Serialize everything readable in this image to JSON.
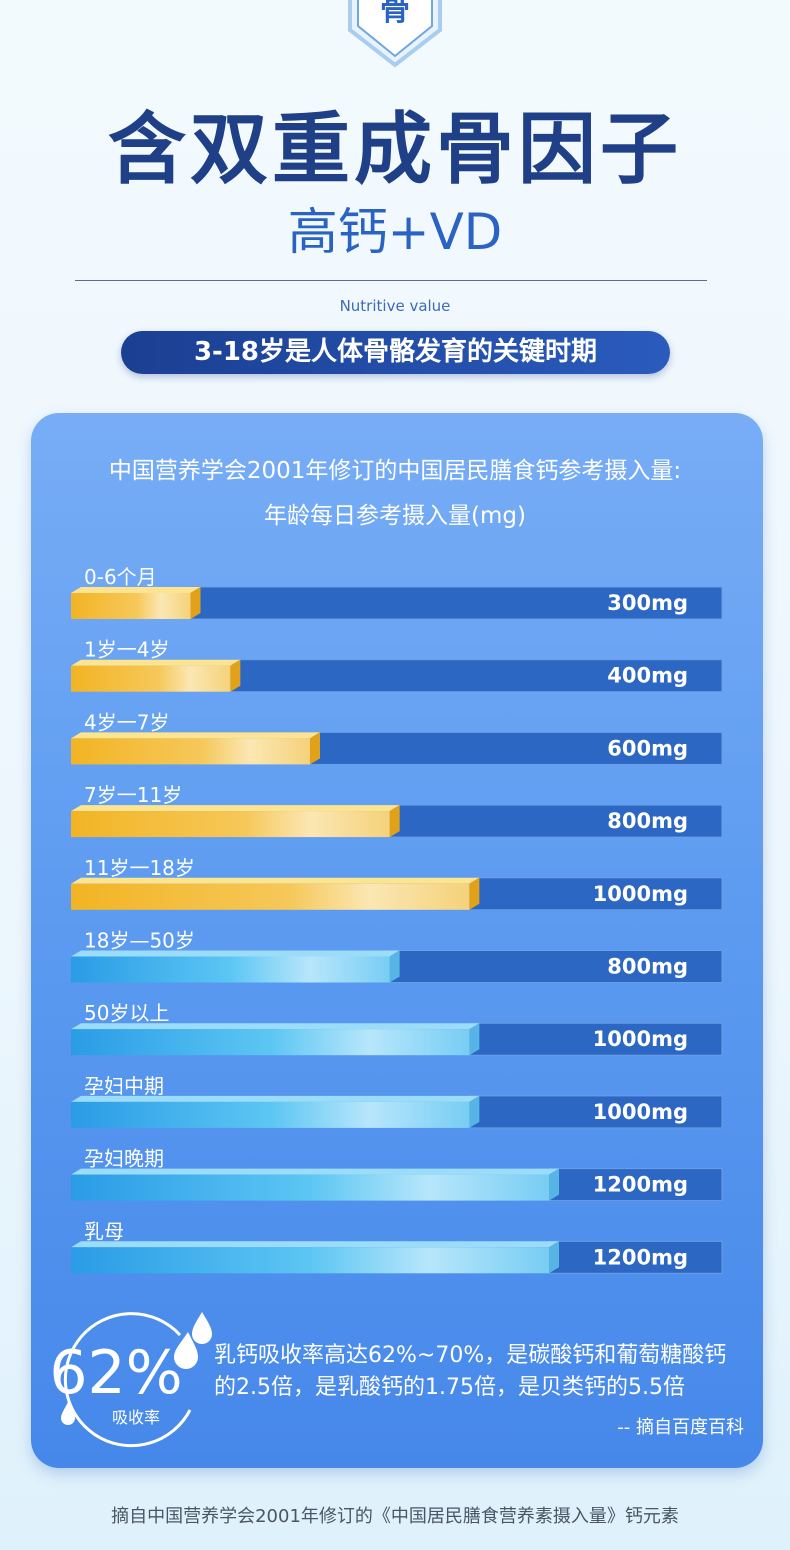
{
  "header": {
    "badge_char": "骨",
    "title": "含双重成骨因子",
    "subtitle": "高钙+VD",
    "en_label": "Nutritive value",
    "pill_text": "3-18岁是人体骨骼发育的关键时期"
  },
  "chart_data": {
    "type": "bar",
    "orientation": "horizontal",
    "title": "中国营养学会2001年修订的中国居民膳食钙参考摄入量:",
    "subtitle": "年龄每日参考摄入量(mg)",
    "categories": [
      "0-6个月",
      "1岁一4岁",
      "4岁一7岁",
      "7岁一11岁",
      "11岁一18岁",
      "18岁—50岁",
      "50岁以上",
      "孕妇中期",
      "孕妇晚期",
      "乳母"
    ],
    "values": [
      300,
      400,
      600,
      800,
      1000,
      800,
      1000,
      1000,
      1200,
      1200
    ],
    "value_labels": [
      "300mg",
      "400mg",
      "600mg",
      "800mg",
      "1000mg",
      "800mg",
      "1000mg",
      "1000mg",
      "1200mg",
      "1200mg"
    ],
    "highlight_count": 5,
    "colors": {
      "highlight": "#f3b72a",
      "normal": "#39a9ea",
      "track": "#2d67c4"
    }
  },
  "absorption": {
    "rate": "62%",
    "label": "吸收率",
    "note": "乳钙吸收率高达62%~70%，是碳酸钙和葡萄糖酸钙的2.5倍，是乳酸钙的1.75倍，是贝类钙的5.5倍",
    "source": "-- 摘自百度百科"
  },
  "footer": "摘自中国营养学会2001年修订的《中国居民膳食营养素摄入量》钙元素"
}
